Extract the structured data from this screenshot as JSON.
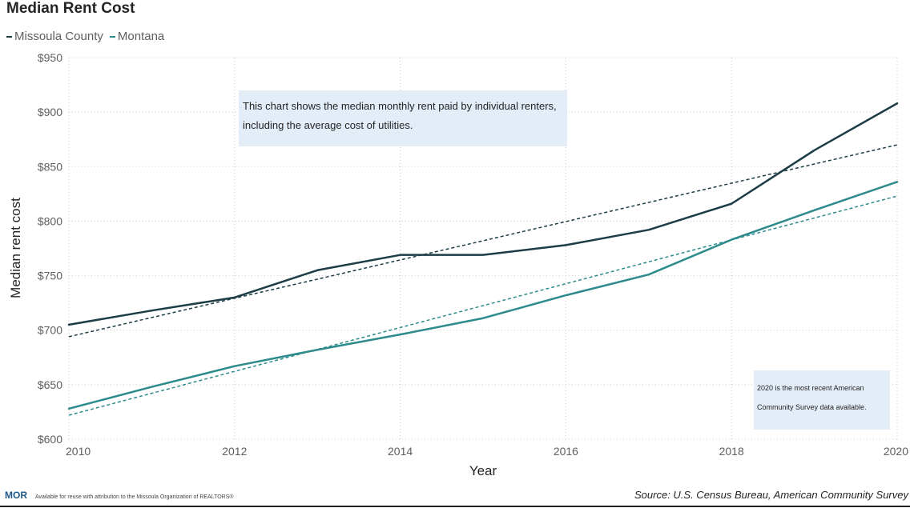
{
  "chart_data": {
    "type": "line",
    "title": "Median Rent Cost",
    "xlabel": "Year",
    "ylabel": "Median rent cost",
    "x": [
      2010,
      2011,
      2012,
      2013,
      2014,
      2015,
      2016,
      2017,
      2018,
      2019,
      2020
    ],
    "xticks": [
      2010,
      2012,
      2014,
      2016,
      2018,
      2020
    ],
    "xlim": [
      2010,
      2020
    ],
    "ylim": [
      600,
      950
    ],
    "yticks": [
      600,
      650,
      700,
      750,
      800,
      850,
      900,
      950
    ],
    "ytick_labels": [
      "$600",
      "$650",
      "$700",
      "$750",
      "$800",
      "$850",
      "$900",
      "$950"
    ],
    "series": [
      {
        "name": "Missoula County",
        "color": "#1c3d46",
        "values": [
          705,
          718,
          730,
          755,
          769,
          769,
          778,
          792,
          816,
          865,
          908
        ],
        "trend": [
          694,
          870
        ]
      },
      {
        "name": "Montana",
        "color": "#2e8b8c",
        "values": [
          628,
          648,
          667,
          682,
          696,
          711,
          732,
          751,
          783,
          810,
          836
        ],
        "trend": [
          622,
          823
        ]
      }
    ],
    "legend_position": "top-left",
    "grid": true,
    "annotations": [
      {
        "text": "This chart shows the median monthly rent paid by individual renters, including the average cost of utilities.",
        "position": "top-center"
      },
      {
        "text": "2020 is the most recent American Community Survey data available.",
        "position": "bottom-right"
      }
    ]
  },
  "footer": {
    "logo": "MOR",
    "attribution": "Available for reuse with attribution to the Missoula Organization of REALTORS®",
    "source": "Source: U.S. Census Bureau, American Community Survey"
  }
}
